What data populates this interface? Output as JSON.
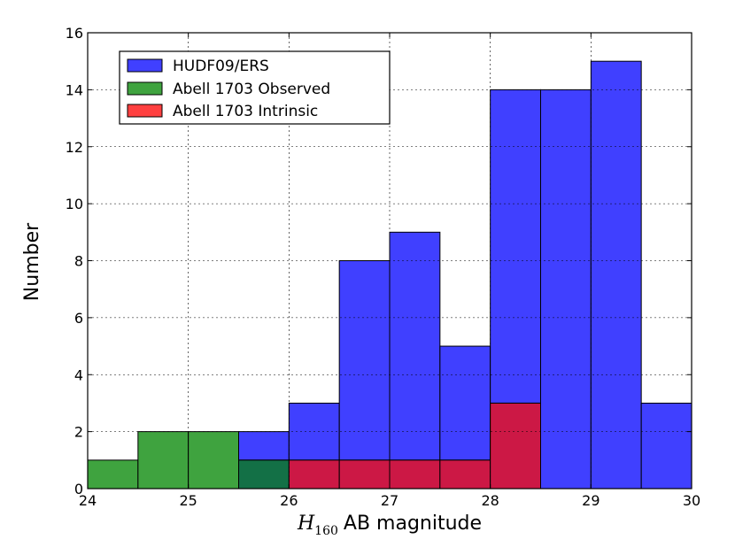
{
  "chart_data": {
    "type": "bar",
    "subtype": "overlaid-histogram",
    "title": "",
    "xlabel": {
      "symbol": "H",
      "subscript": "160",
      "text": "AB magnitude"
    },
    "ylabel": "Number",
    "xlim": [
      24,
      30
    ],
    "ylim": [
      0,
      16
    ],
    "xticks": [
      "24",
      "25",
      "26",
      "27",
      "28",
      "29",
      "30"
    ],
    "yticks": [
      "0",
      "2",
      "4",
      "6",
      "8",
      "10",
      "12",
      "14",
      "16"
    ],
    "bin_edges": [
      24.0,
      24.5,
      25.0,
      25.5,
      26.0,
      26.5,
      27.0,
      27.5,
      28.0,
      28.5,
      29.0,
      29.5,
      30.0
    ],
    "grid": true,
    "legend_position": "top-left",
    "series": [
      {
        "name": "HUDF09/ERS",
        "color": "#4040ff",
        "values": [
          0,
          0,
          0,
          2,
          3,
          8,
          9,
          5,
          14,
          14,
          15,
          3
        ]
      },
      {
        "name": "Abell 1703 Observed",
        "color": "#3fa33f",
        "values": [
          1,
          2,
          2,
          1,
          0,
          0,
          0,
          0,
          0,
          0,
          0,
          0
        ]
      },
      {
        "name": "Abell 1703 Intrinsic",
        "color": "#ff4040",
        "values": [
          0,
          0,
          0,
          0,
          1,
          1,
          1,
          1,
          3,
          0,
          0,
          0
        ]
      }
    ],
    "overlap_colors": {
      "blue_red": "#cc1845",
      "green_blue": "#137046",
      "green_red": "#c42010"
    }
  }
}
